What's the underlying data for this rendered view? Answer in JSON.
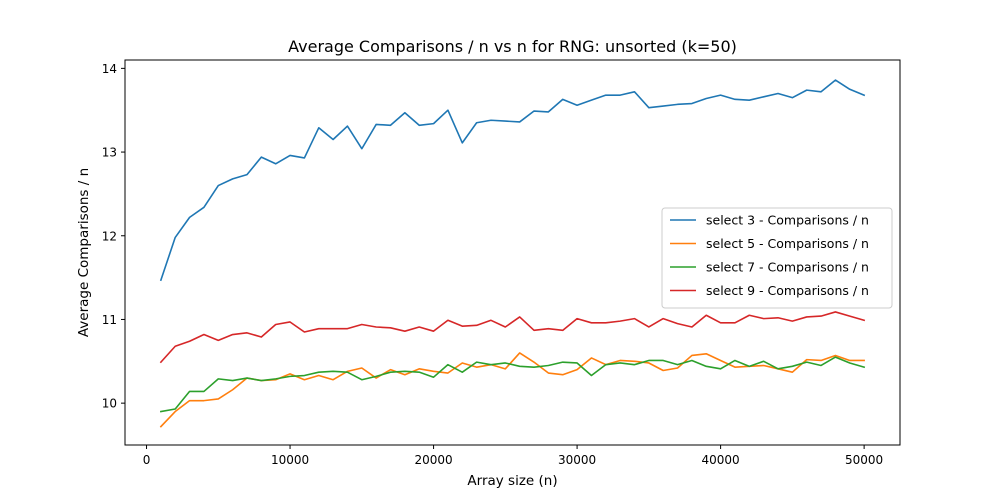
{
  "chart_data": {
    "type": "line",
    "title": "Average Comparisons / n vs n for RNG: unsorted (k=50)",
    "xlabel": "Array size (n)",
    "ylabel": "Average Comparisons / n",
    "xlim": [
      -1500,
      52500
    ],
    "ylim": [
      9.5,
      14.1
    ],
    "xticks": [
      0,
      10000,
      20000,
      30000,
      40000,
      50000
    ],
    "xtick_labels": [
      "0",
      "10000",
      "20000",
      "30000",
      "40000",
      "50000"
    ],
    "yticks": [
      10,
      11,
      12,
      13,
      14
    ],
    "ytick_labels": [
      "10",
      "11",
      "12",
      "13",
      "14"
    ],
    "grid": false,
    "legend_position": "center-right",
    "x": [
      1000,
      2000,
      3000,
      4000,
      5000,
      6000,
      7000,
      8000,
      9000,
      10000,
      11000,
      12000,
      13000,
      14000,
      15000,
      16000,
      17000,
      18000,
      19000,
      20000,
      21000,
      22000,
      23000,
      24000,
      25000,
      26000,
      27000,
      28000,
      29000,
      30000,
      31000,
      32000,
      33000,
      34000,
      35000,
      36000,
      37000,
      38000,
      39000,
      40000,
      41000,
      42000,
      43000,
      44000,
      45000,
      46000,
      47000,
      48000,
      49000,
      50000
    ],
    "series": [
      {
        "name": "select 3 - Comparisons / n",
        "color": "#1f77b4",
        "values": [
          11.47,
          11.98,
          12.22,
          12.34,
          12.6,
          12.68,
          12.73,
          12.94,
          12.86,
          12.96,
          12.93,
          13.29,
          13.15,
          13.31,
          13.04,
          13.33,
          13.32,
          13.47,
          13.32,
          13.34,
          13.5,
          13.11,
          13.35,
          13.38,
          13.37,
          13.36,
          13.49,
          13.48,
          13.63,
          13.56,
          13.62,
          13.68,
          13.68,
          13.72,
          13.53,
          13.55,
          13.57,
          13.58,
          13.64,
          13.68,
          13.63,
          13.62,
          13.66,
          13.7,
          13.65,
          13.74,
          13.72,
          13.86,
          13.75,
          13.68
        ]
      },
      {
        "name": "select 5 - Comparisons / n",
        "color": "#ff7f0e",
        "values": [
          9.72,
          9.9,
          10.03,
          10.03,
          10.05,
          10.16,
          10.3,
          10.27,
          10.28,
          10.35,
          10.28,
          10.33,
          10.28,
          10.38,
          10.42,
          10.3,
          10.4,
          10.34,
          10.41,
          10.38,
          10.36,
          10.48,
          10.43,
          10.46,
          10.41,
          10.6,
          10.49,
          10.36,
          10.34,
          10.4,
          10.54,
          10.46,
          10.51,
          10.5,
          10.48,
          10.39,
          10.42,
          10.57,
          10.59,
          10.51,
          10.43,
          10.44,
          10.45,
          10.41,
          10.37,
          10.52,
          10.51,
          10.57,
          10.51,
          10.51
        ]
      },
      {
        "name": "select 7 - Comparisons / n",
        "color": "#2ca02c",
        "values": [
          9.9,
          9.93,
          10.14,
          10.14,
          10.29,
          10.27,
          10.3,
          10.27,
          10.29,
          10.32,
          10.33,
          10.37,
          10.38,
          10.37,
          10.28,
          10.32,
          10.37,
          10.38,
          10.37,
          10.31,
          10.46,
          10.37,
          10.49,
          10.46,
          10.48,
          10.44,
          10.43,
          10.45,
          10.49,
          10.48,
          10.33,
          10.46,
          10.48,
          10.46,
          10.51,
          10.51,
          10.46,
          10.51,
          10.44,
          10.41,
          10.51,
          10.44,
          10.5,
          10.41,
          10.44,
          10.49,
          10.45,
          10.55,
          10.48,
          10.43
        ]
      },
      {
        "name": "select 9 - Comparisons / n",
        "color": "#d62728",
        "values": [
          10.49,
          10.68,
          10.74,
          10.82,
          10.75,
          10.82,
          10.84,
          10.79,
          10.94,
          10.97,
          10.85,
          10.89,
          10.89,
          10.89,
          10.94,
          10.91,
          10.9,
          10.86,
          10.91,
          10.86,
          10.99,
          10.92,
          10.93,
          10.99,
          10.91,
          11.03,
          10.87,
          10.89,
          10.87,
          11.01,
          10.96,
          10.96,
          10.98,
          11.01,
          10.91,
          11.01,
          10.95,
          10.91,
          11.05,
          10.96,
          10.96,
          11.05,
          11.01,
          11.02,
          10.98,
          11.03,
          11.04,
          11.09,
          11.04,
          10.99
        ]
      }
    ]
  }
}
